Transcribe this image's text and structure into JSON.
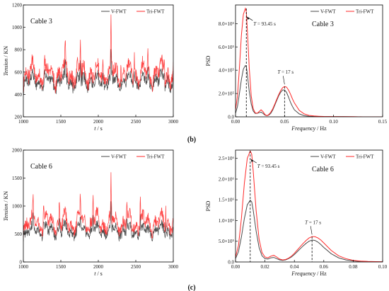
{
  "series_names": [
    "V-FWT",
    "Tri-FWT"
  ],
  "colors": {
    "v_fwt": "#4a4a4a",
    "tri_fwt": "#ff2a2a"
  },
  "panel_labels": {
    "b": "(b)",
    "c": "(c)"
  },
  "chart_data": [
    {
      "type": "line",
      "panel": "(b) time history",
      "annotation": "Cable 3",
      "xlabel_pre": "t",
      "xlabel_post": " / s",
      "ylabel_pre": "Tension",
      "ylabel_post": " / KN",
      "xlim": [
        1000,
        3000
      ],
      "ylim": [
        200,
        1200
      ],
      "xticks": [
        1000,
        1500,
        2000,
        2500,
        3000
      ],
      "yticks": [
        200,
        400,
        600,
        800,
        1000,
        1200
      ],
      "legend": "top-right",
      "grid": false,
      "series": [
        {
          "name": "V-FWT",
          "mean": 520,
          "amp": 110
        },
        {
          "name": "Tri-FWT",
          "mean": 590,
          "amp": 150
        }
      ],
      "peaks": [
        [
          1280,
          740
        ],
        [
          1560,
          800
        ],
        [
          1760,
          860
        ],
        [
          2060,
          790
        ],
        [
          2170,
          1010
        ],
        [
          2300,
          820
        ],
        [
          2480,
          880
        ],
        [
          2660,
          800
        ],
        [
          2880,
          760
        ]
      ]
    },
    {
      "type": "line",
      "panel": "(b) spectrum",
      "annotation": "Cable 3",
      "xlabel_pre": "Frequency",
      "xlabel_post": " / Hz",
      "ylabel": "PSD",
      "xlim": [
        0,
        0.15
      ],
      "ylim": [
        0,
        9.6
      ],
      "xticks": [
        0,
        0.05,
        0.1,
        0.15
      ],
      "xtick_labels": [
        "0.00",
        "0.05",
        "0.10",
        "0.15"
      ],
      "yticks": [
        0,
        2,
        4,
        6,
        8
      ],
      "ytick_labels": [
        "0.0",
        "2.0×10⁵",
        "4.0×10⁵",
        "6.0×10⁵",
        "8.0×10⁵"
      ],
      "legend": "top-right",
      "grid": false,
      "series": [
        {
          "name": "V-FWT",
          "x": [
            0,
            0.002,
            0.004,
            0.006,
            0.008,
            0.01,
            0.011,
            0.012,
            0.014,
            0.016,
            0.018,
            0.02,
            0.022,
            0.024,
            0.026,
            0.028,
            0.03,
            0.032,
            0.034,
            0.036,
            0.038,
            0.04,
            0.042,
            0.044,
            0.046,
            0.048,
            0.05,
            0.052,
            0.054,
            0.056,
            0.058,
            0.06,
            0.065,
            0.07,
            0.075,
            0.08,
            0.085,
            0.09,
            0.1,
            0.11,
            0.12,
            0.13,
            0.14,
            0.15
          ],
          "y": [
            0.3,
            0.9,
            2.0,
            3.2,
            4.1,
            4.4,
            4.3,
            3.7,
            2.2,
            1.1,
            0.5,
            0.3,
            0.3,
            0.35,
            0.4,
            0.3,
            0.15,
            0.1,
            0.15,
            0.3,
            0.6,
            1.0,
            1.4,
            1.8,
            2.1,
            2.3,
            2.3,
            2.1,
            1.7,
            1.25,
            0.9,
            0.6,
            0.25,
            0.1,
            0.05,
            0.03,
            0.02,
            0.02,
            0.01,
            0.01,
            0.0,
            0.0,
            0.0,
            0.0
          ]
        },
        {
          "name": "Tri-FWT",
          "x": [
            0,
            0.002,
            0.004,
            0.006,
            0.008,
            0.01,
            0.011,
            0.012,
            0.014,
            0.016,
            0.018,
            0.02,
            0.022,
            0.024,
            0.026,
            0.028,
            0.03,
            0.032,
            0.034,
            0.036,
            0.038,
            0.04,
            0.042,
            0.044,
            0.046,
            0.048,
            0.05,
            0.052,
            0.054,
            0.056,
            0.058,
            0.06,
            0.065,
            0.07,
            0.075,
            0.08,
            0.085,
            0.09,
            0.1,
            0.11,
            0.12,
            0.13,
            0.14,
            0.15
          ],
          "y": [
            0.6,
            1.8,
            4.2,
            7.0,
            8.8,
            9.3,
            9.0,
            7.6,
            4.2,
            1.8,
            0.7,
            0.35,
            0.3,
            0.45,
            0.6,
            0.45,
            0.2,
            0.1,
            0.2,
            0.4,
            0.7,
            1.1,
            1.5,
            1.9,
            2.25,
            2.5,
            2.6,
            2.55,
            2.3,
            1.95,
            1.55,
            1.2,
            0.55,
            0.25,
            0.12,
            0.07,
            0.05,
            0.03,
            0.02,
            0.01,
            0.01,
            0.0,
            0.0,
            0.0
          ]
        }
      ],
      "markers": [
        {
          "x": 0.011,
          "y": 9.3,
          "label_pre": "T",
          "label_post": " = 93.45 s"
        },
        {
          "x": 0.05,
          "y": 2.6,
          "label_pre": "T",
          "label_post": " = 17 s"
        }
      ]
    },
    {
      "type": "line",
      "panel": "(c) time history",
      "annotation": "Cable 6",
      "xlabel_pre": "t",
      "xlabel_post": " / s",
      "ylabel_pre": "Tension",
      "ylabel_post": " / KN",
      "xlim": [
        1000,
        3000
      ],
      "ylim": [
        0,
        2000
      ],
      "xticks": [
        1000,
        1500,
        2000,
        2500,
        3000
      ],
      "yticks": [
        0,
        500,
        1000,
        1500,
        2000
      ],
      "legend": "top-right",
      "grid": false,
      "series": [
        {
          "name": "V-FWT",
          "mean": 560,
          "amp": 170
        },
        {
          "name": "Tri-FWT",
          "mean": 700,
          "amp": 240
        }
      ],
      "peaks": [
        [
          1130,
          1150
        ],
        [
          1270,
          1200
        ],
        [
          1480,
          1100
        ],
        [
          1760,
          1320
        ],
        [
          1930,
          1250
        ],
        [
          2170,
          1520
        ],
        [
          2380,
          1200
        ],
        [
          2560,
          1300
        ],
        [
          2900,
          1100
        ]
      ]
    },
    {
      "type": "line",
      "panel": "(c) spectrum",
      "annotation": "Cable 6",
      "xlabel_pre": "Frequency",
      "xlabel_post": " / Hz",
      "ylabel": "PSD",
      "xlim": [
        0,
        0.1
      ],
      "ylim": [
        0,
        27
      ],
      "xticks": [
        0,
        0.02,
        0.04,
        0.06,
        0.08,
        0.1
      ],
      "xtick_labels": [
        "0.00",
        "0.02",
        "0.04",
        "0.06",
        "0.08",
        "0.10"
      ],
      "yticks": [
        0,
        5,
        10,
        15,
        20,
        25
      ],
      "ytick_labels": [
        "0.0",
        "5.0×10⁵",
        "1.0×10⁶",
        "1.5×10⁶",
        "2.0×10⁶",
        "2.5×10⁶"
      ],
      "legend": "top-right",
      "grid": false,
      "series": [
        {
          "name": "V-FWT",
          "x": [
            0,
            0.002,
            0.004,
            0.006,
            0.008,
            0.01,
            0.011,
            0.012,
            0.014,
            0.016,
            0.018,
            0.02,
            0.022,
            0.024,
            0.026,
            0.028,
            0.03,
            0.032,
            0.034,
            0.036,
            0.038,
            0.04,
            0.042,
            0.044,
            0.046,
            0.048,
            0.05,
            0.052,
            0.054,
            0.056,
            0.058,
            0.06,
            0.065,
            0.07,
            0.075,
            0.08,
            0.085,
            0.09,
            0.095,
            0.1
          ],
          "y": [
            0.8,
            2.5,
            6.0,
            10.5,
            13.8,
            14.9,
            14.5,
            12.5,
            7.5,
            3.5,
            1.5,
            0.8,
            0.7,
            1.0,
            1.1,
            0.8,
            0.5,
            0.4,
            0.5,
            0.8,
            1.2,
            1.8,
            2.5,
            3.2,
            3.9,
            4.5,
            5.0,
            5.3,
            5.2,
            4.8,
            4.2,
            3.5,
            2.0,
            1.0,
            0.5,
            0.25,
            0.12,
            0.08,
            0.05,
            0.04
          ]
        },
        {
          "name": "Tri-FWT",
          "x": [
            0,
            0.002,
            0.004,
            0.006,
            0.008,
            0.01,
            0.011,
            0.012,
            0.014,
            0.016,
            0.018,
            0.02,
            0.022,
            0.024,
            0.026,
            0.028,
            0.03,
            0.032,
            0.034,
            0.036,
            0.038,
            0.04,
            0.042,
            0.044,
            0.046,
            0.048,
            0.05,
            0.052,
            0.054,
            0.056,
            0.058,
            0.06,
            0.065,
            0.07,
            0.075,
            0.08,
            0.085,
            0.09,
            0.095,
            0.1
          ],
          "y": [
            1.2,
            4.0,
            10.5,
            19.0,
            25.0,
            26.8,
            26.0,
            22.0,
            12.5,
            5.5,
            2.3,
            1.2,
            1.0,
            1.4,
            1.6,
            1.2,
            0.7,
            0.5,
            0.6,
            0.9,
            1.4,
            2.1,
            2.9,
            3.7,
            4.5,
            5.2,
            5.8,
            6.1,
            6.1,
            5.8,
            5.3,
            4.6,
            2.8,
            1.5,
            0.8,
            0.4,
            0.2,
            0.12,
            0.08,
            0.05
          ]
        }
      ],
      "markers": [
        {
          "x": 0.01,
          "y": 26.8,
          "label_pre": "T",
          "label_post": " = 93.45 s"
        },
        {
          "x": 0.052,
          "y": 6.1,
          "label_pre": "T",
          "label_post": " = 17 s"
        }
      ]
    }
  ]
}
